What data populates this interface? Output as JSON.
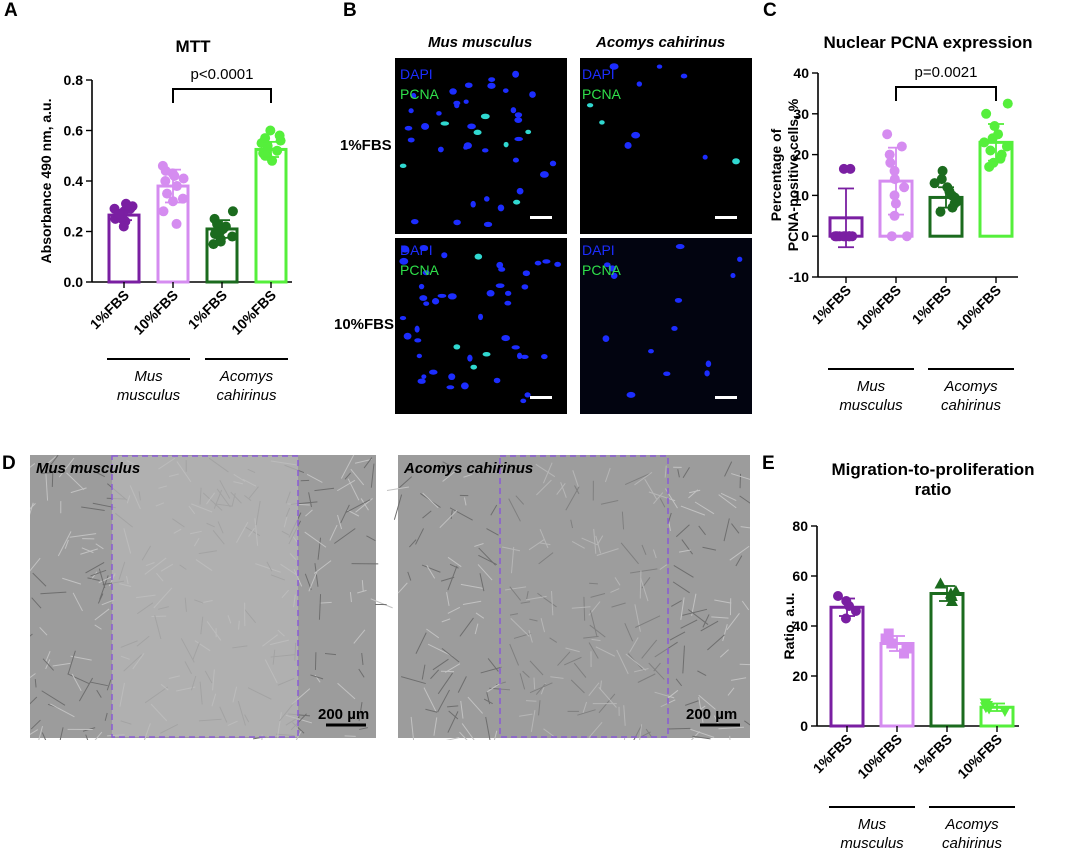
{
  "colors": {
    "mus_1": "#7a1fa2",
    "mus_10": "#d58cf0",
    "aco_1": "#1b6b1e",
    "aco_10": "#55ef3b",
    "dapi": "#1c2dff",
    "pcna": "#2fe04a",
    "roi": "#8a5ad6"
  },
  "panels": {
    "A": {
      "letter": "A"
    },
    "B": {
      "letter": "B"
    },
    "C": {
      "letter": "C"
    },
    "D": {
      "letter": "D"
    },
    "E": {
      "letter": "E"
    }
  },
  "species": {
    "mus_line1": "Mus",
    "mus_line2": "musculus",
    "aco_line1": "Acomys",
    "aco_line2": "cahirinus"
  },
  "micro": {
    "col_titles": [
      "Mus musculus",
      "Acomys cahirinus"
    ],
    "row_labels": [
      "1%FBS",
      "10%FBS"
    ],
    "channel_dapi": "DAPI",
    "channel_pcna": "PCNA"
  },
  "phase": {
    "left_title": "Mus musculus",
    "right_title": "Acomys cahirinus",
    "scalebar": "200 µm"
  },
  "chart_data": [
    {
      "id": "A",
      "type": "bar",
      "title": "MTT",
      "ylabel": "Absorbance 490 nm, a.u.",
      "categories": [
        "1%FBS",
        "10%FBS",
        "1%FBS",
        "10%FBS"
      ],
      "values": [
        0.265,
        0.38,
        0.21,
        0.525
      ],
      "errors": [
        0.02,
        0.065,
        0.035,
        0.03
      ],
      "ylim": [
        0.0,
        0.8
      ],
      "yticks": [
        "0.0",
        "0.2",
        "0.4",
        "0.6",
        "0.8"
      ],
      "annotation": "p<0.0001",
      "points": [
        [
          0.22,
          0.24,
          0.25,
          0.26,
          0.27,
          0.28,
          0.29,
          0.3,
          0.31,
          0.25,
          0.27,
          0.29
        ],
        [
          0.23,
          0.28,
          0.32,
          0.35,
          0.38,
          0.4,
          0.42,
          0.43,
          0.44,
          0.46,
          0.33,
          0.41
        ],
        [
          0.15,
          0.17,
          0.18,
          0.19,
          0.2,
          0.21,
          0.22,
          0.23,
          0.25,
          0.28,
          0.16,
          0.2
        ],
        [
          0.48,
          0.5,
          0.51,
          0.52,
          0.53,
          0.54,
          0.55,
          0.56,
          0.57,
          0.58,
          0.6,
          0.5
        ]
      ]
    },
    {
      "id": "C",
      "type": "bar",
      "title": "Nuclear PCNA expression",
      "ylabel": "Percentage of PCNA-positive cells, %",
      "categories": [
        "1%FBS",
        "10%FBS",
        "1%FBS",
        "10%FBS"
      ],
      "values": [
        4.5,
        13.5,
        9.5,
        23
      ],
      "errors": [
        7.2,
        8.2,
        2.5,
        4.5
      ],
      "ylim": [
        -10,
        40
      ],
      "yticks": [
        "-10",
        "0",
        "10",
        "20",
        "30",
        "40"
      ],
      "annotation": "p=0.0021",
      "points": [
        [
          0,
          0,
          0,
          0,
          0,
          0,
          0,
          0,
          0,
          16.5,
          16.5,
          0
        ],
        [
          0,
          0,
          5,
          8,
          10,
          12,
          14,
          16,
          18,
          20,
          22,
          25
        ],
        [
          6,
          7,
          8,
          8.5,
          9,
          9.5,
          10,
          11,
          12,
          13,
          14,
          16
        ],
        [
          17,
          18,
          19,
          20,
          21,
          22,
          23,
          24,
          25,
          27,
          30,
          32.5
        ]
      ]
    },
    {
      "id": "E",
      "type": "bar",
      "title": "Migration-to-proliferation ratio",
      "ylabel": "Ratio, a.u.",
      "categories": [
        "1%FBS",
        "10%FBS",
        "1%FBS",
        "10%FBS"
      ],
      "values": [
        47.5,
        33,
        53,
        7.5
      ],
      "errors": [
        3.5,
        3,
        3,
        1.5
      ],
      "ylim": [
        0,
        80
      ],
      "yticks": [
        "0",
        "20",
        "40",
        "60",
        "80"
      ],
      "markers": [
        "circle",
        "square",
        "triangle",
        "triangle-down"
      ],
      "points": [
        [
          43,
          46,
          48,
          50,
          52
        ],
        [
          29,
          31,
          33,
          35,
          37
        ],
        [
          50,
          52,
          53,
          54,
          57
        ],
        [
          6,
          7,
          7.5,
          8,
          9
        ]
      ]
    }
  ]
}
